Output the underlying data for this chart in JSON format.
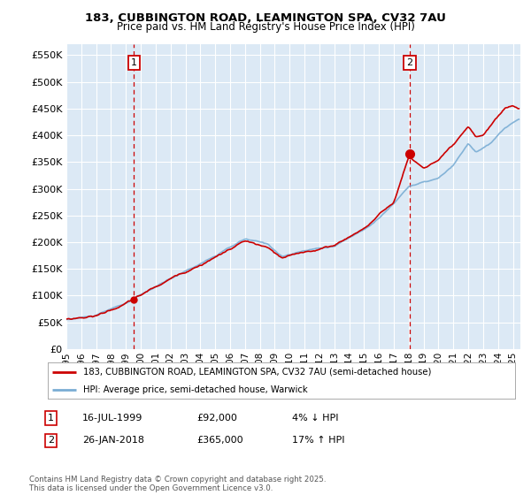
{
  "title_line1": "183, CUBBINGTON ROAD, LEAMINGTON SPA, CV32 7AU",
  "title_line2": "Price paid vs. HM Land Registry's House Price Index (HPI)",
  "ytick_values": [
    0,
    50000,
    100000,
    150000,
    200000,
    250000,
    300000,
    350000,
    400000,
    450000,
    500000,
    550000
  ],
  "ylim": [
    0,
    570000
  ],
  "xlim_start": 1995.0,
  "xlim_end": 2025.5,
  "hpi_color": "#7aadd4",
  "price_color": "#cc0000",
  "marker1_date": 1999.54,
  "marker1_price": 92000,
  "marker1_label": "16-JUL-1999",
  "marker1_text": "£92,000",
  "marker1_pct": "4% ↓ HPI",
  "marker2_date": 2018.07,
  "marker2_price": 365000,
  "marker2_label": "26-JAN-2018",
  "marker2_text": "£365,000",
  "marker2_pct": "17% ↑ HPI",
  "legend_line1": "183, CUBBINGTON ROAD, LEAMINGTON SPA, CV32 7AU (semi-detached house)",
  "legend_line2": "HPI: Average price, semi-detached house, Warwick",
  "annotation1_num": "1",
  "annotation2_num": "2",
  "footer_line1": "Contains HM Land Registry data © Crown copyright and database right 2025.",
  "footer_line2": "This data is licensed under the Open Government Licence v3.0.",
  "background_color": "#dce9f5",
  "fig_bg_color": "#ffffff"
}
